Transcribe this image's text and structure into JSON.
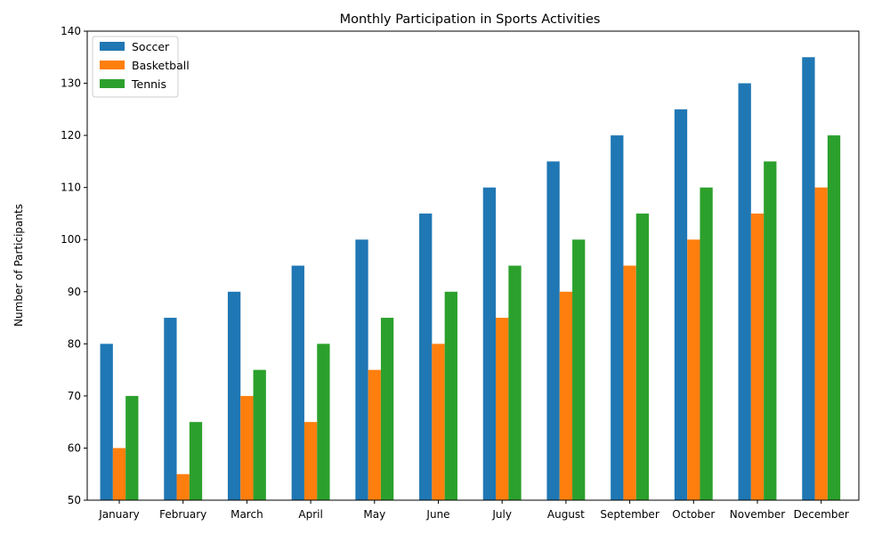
{
  "chart_data": {
    "type": "bar",
    "title": "Monthly Participation in Sports Activities",
    "xlabel": "",
    "ylabel": "Number of Participants",
    "ylim": [
      50,
      140
    ],
    "yticks": [
      50,
      60,
      70,
      80,
      90,
      100,
      110,
      120,
      130,
      140
    ],
    "grid": false,
    "legend_position": "top-left",
    "categories": [
      "January",
      "February",
      "March",
      "April",
      "May",
      "June",
      "July",
      "August",
      "September",
      "October",
      "November",
      "December"
    ],
    "series": [
      {
        "name": "Soccer",
        "color": "#1f77b4",
        "values": [
          80,
          85,
          90,
          95,
          100,
          105,
          110,
          115,
          120,
          125,
          130,
          135
        ]
      },
      {
        "name": "Basketball",
        "color": "#ff7f0e",
        "values": [
          60,
          55,
          70,
          65,
          75,
          80,
          85,
          90,
          95,
          100,
          105,
          110
        ]
      },
      {
        "name": "Tennis",
        "color": "#2ca02c",
        "values": [
          70,
          65,
          75,
          80,
          85,
          90,
          95,
          100,
          105,
          110,
          115,
          120
        ]
      }
    ]
  }
}
